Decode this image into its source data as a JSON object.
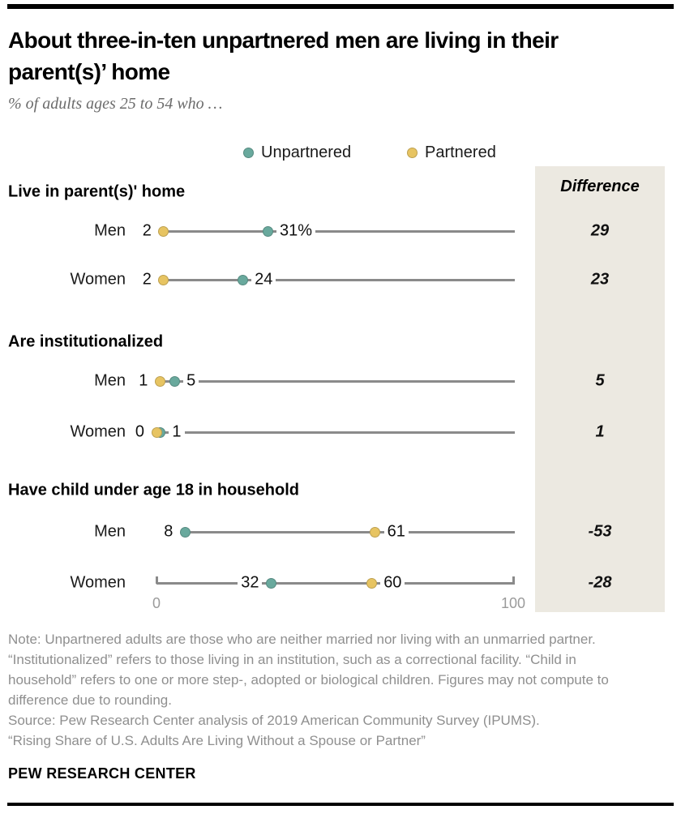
{
  "header": {
    "title": "About three-in-ten unpartnered men are living in their parent(s)’ home",
    "subtitle": "% of adults ages 25 to 54 who …"
  },
  "legend": [
    {
      "label": "Unpartnered",
      "color": "#69a99d"
    },
    {
      "label": "Partnered",
      "color": "#e7c462"
    }
  ],
  "difference_header": "Difference",
  "chart_data": {
    "type": "dumbbell",
    "axis": {
      "min": 0,
      "max": 100,
      "tick_labels": [
        "0",
        "100"
      ]
    },
    "series_names": [
      "Unpartnered",
      "Partnered"
    ],
    "colors": {
      "unpartnered": "#69a99d",
      "partnered": "#e7c462",
      "line": "#8a8a8a",
      "diff_box": "#ece9e1"
    },
    "sections": [
      {
        "title": "Live in parent(s)' home",
        "rows": [
          {
            "label": "Men",
            "unpartnered": 31,
            "partnered": 2,
            "unpartnered_display": "31%",
            "partnered_display": "2",
            "difference": 29
          },
          {
            "label": "Women",
            "unpartnered": 24,
            "partnered": 2,
            "unpartnered_display": "24",
            "partnered_display": "2",
            "difference": 23
          }
        ]
      },
      {
        "title": "Are institutionalized",
        "rows": [
          {
            "label": "Men",
            "unpartnered": 5,
            "partnered": 1,
            "unpartnered_display": "5",
            "partnered_display": "1",
            "difference": 5
          },
          {
            "label": "Women",
            "unpartnered": 1,
            "partnered": 0,
            "unpartnered_display": "1",
            "partnered_display": "0",
            "difference": 1
          }
        ]
      },
      {
        "title": "Have child under age 18 in household",
        "rows": [
          {
            "label": "Men",
            "unpartnered": 8,
            "partnered": 61,
            "unpartnered_display": "8",
            "partnered_display": "61",
            "difference": -53
          },
          {
            "label": "Women",
            "unpartnered": 32,
            "partnered": 60,
            "unpartnered_display": "32",
            "partnered_display": "60",
            "difference": -28
          }
        ]
      }
    ]
  },
  "notes": {
    "note": "Note: Unpartnered adults are those who are neither married nor living with an unmarried partner. “Institutionalized” refers to those living in an institution, such as a correctional facility. “Child in household” refers to one or more step-, adopted or biological children. Figures may not compute to difference due to rounding.",
    "source": "Source: Pew Research Center analysis of 2019 American Community Survey (IPUMS).",
    "report": "“Rising Share of U.S. Adults Are Living Without a Spouse or Partner”"
  },
  "footer": {
    "brand": "PEW RESEARCH CENTER"
  }
}
